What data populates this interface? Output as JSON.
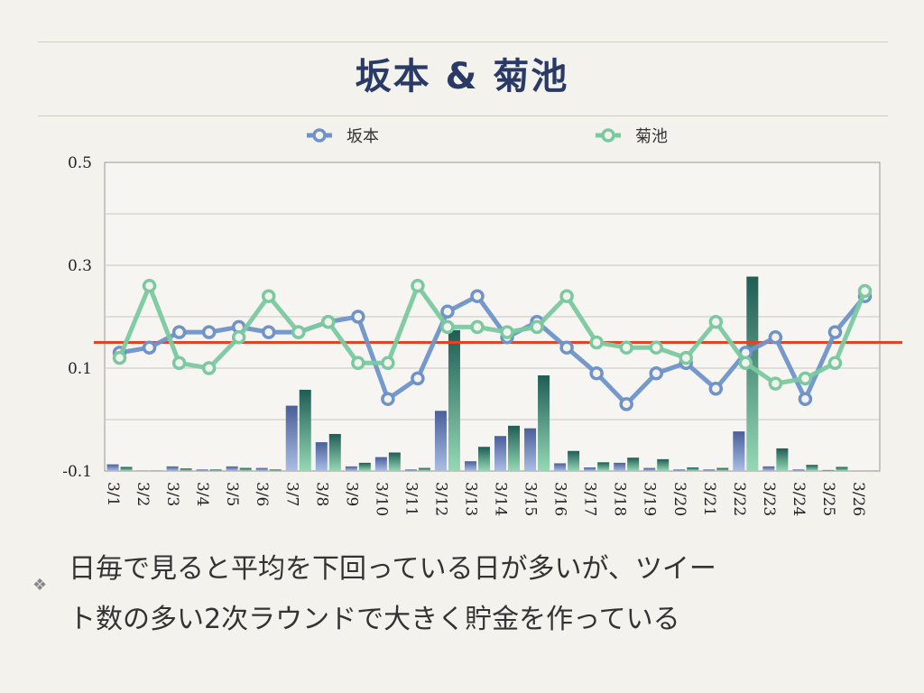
{
  "slide": {
    "title": "坂本 & 菊池",
    "bullet_mark": "❖",
    "bullet_lines": [
      "日毎で見ると平均を下回っている日が多いが、ツイー",
      "ト数の多い2次ラウンドで大きく貯金を作っている"
    ]
  },
  "chart_data": {
    "type": "line",
    "categories": [
      "3/1",
      "3/2",
      "3/3",
      "3/4",
      "3/5",
      "3/6",
      "3/7",
      "3/8",
      "3/9",
      "3/10",
      "3/11",
      "3/12",
      "3/13",
      "3/14",
      "3/15",
      "3/16",
      "3/17",
      "3/18",
      "3/19",
      "3/20",
      "3/21",
      "3/22",
      "3/23",
      "3/24",
      "3/25",
      "3/26"
    ],
    "ylim": [
      -0.1,
      0.5
    ],
    "yticks": [
      -0.1,
      0.1,
      0.3,
      0.5
    ],
    "ytick_labels": [
      "-0.1",
      "0.1",
      "0.3",
      "0.5"
    ],
    "legend_position": "top",
    "reference_line": {
      "value": 0.15,
      "color": "#e2442a"
    },
    "series": [
      {
        "name": "坂本",
        "color": "#6f93c8",
        "values": [
          0.13,
          0.14,
          0.17,
          0.17,
          0.18,
          0.17,
          0.17,
          0.19,
          0.2,
          0.04,
          0.08,
          0.21,
          0.24,
          0.16,
          0.19,
          0.14,
          0.09,
          0.03,
          0.09,
          0.11,
          0.06,
          0.13,
          0.16,
          0.04,
          0.17,
          0.24
        ]
      },
      {
        "name": "菊池",
        "color": "#7ac9a0",
        "values": [
          0.12,
          0.26,
          0.11,
          0.1,
          0.16,
          0.24,
          0.17,
          0.19,
          0.11,
          0.11,
          0.26,
          0.18,
          0.18,
          0.17,
          0.18,
          0.24,
          0.15,
          0.14,
          0.14,
          0.12,
          0.19,
          0.11,
          0.07,
          0.08,
          0.11,
          0.25
        ]
      }
    ],
    "bar_series": [
      {
        "color_top": "#4a5f9a",
        "color_bottom": "#a9bde4",
        "values": [
          -0.087,
          -0.099,
          -0.091,
          -0.097,
          -0.091,
          -0.094,
          0.027,
          -0.044,
          -0.091,
          -0.073,
          -0.097,
          0.017,
          -0.081,
          -0.032,
          -0.017,
          -0.085,
          -0.093,
          -0.084,
          -0.094,
          -0.097,
          -0.097,
          -0.023,
          -0.091,
          -0.097,
          -0.098,
          -0.1
        ]
      },
      {
        "color_top": "#1f5d55",
        "color_bottom": "#95d8b5",
        "values": [
          -0.092,
          -0.099,
          -0.095,
          -0.097,
          -0.094,
          -0.097,
          0.058,
          -0.028,
          -0.084,
          -0.064,
          -0.094,
          0.174,
          -0.053,
          -0.012,
          0.086,
          -0.061,
          -0.083,
          -0.074,
          -0.077,
          -0.093,
          -0.094,
          0.278,
          -0.056,
          -0.088,
          -0.092,
          -0.1
        ]
      }
    ]
  }
}
